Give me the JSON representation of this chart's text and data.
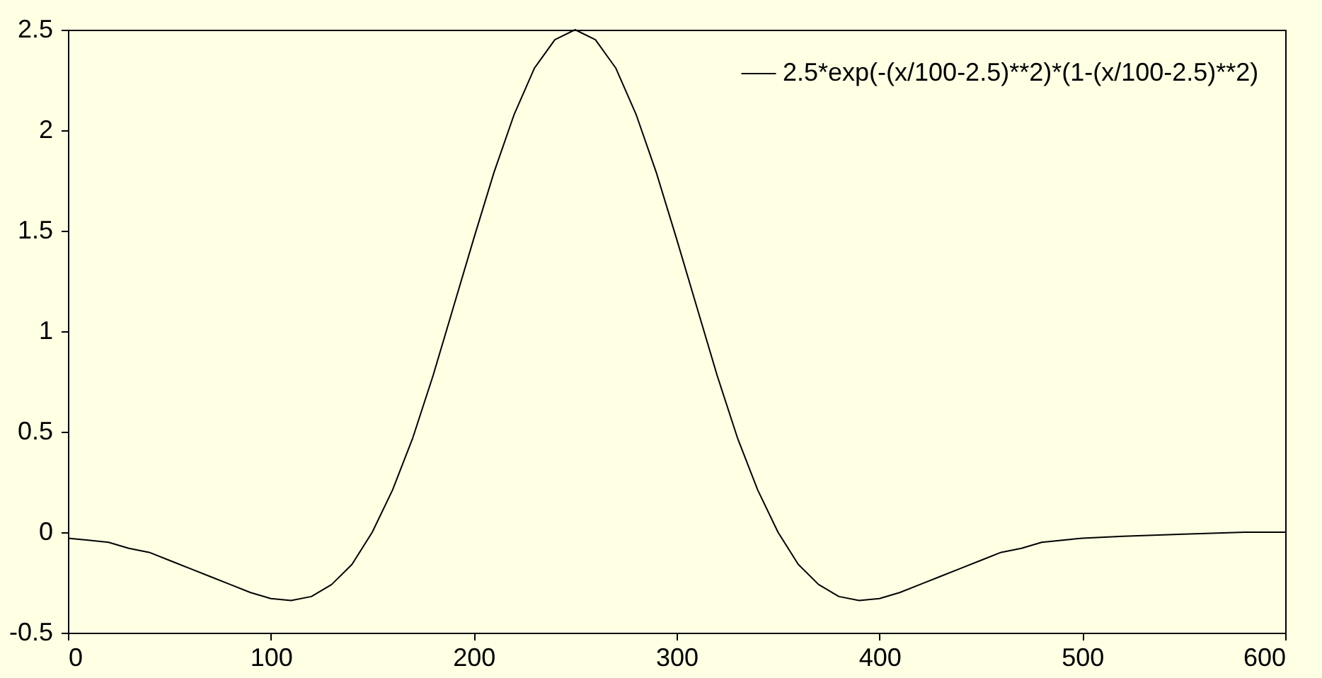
{
  "chart_data": {
    "type": "line",
    "legend": "top right",
    "grid": false,
    "xlim": [
      0,
      600
    ],
    "xticks": [
      0,
      100,
      200,
      300,
      400,
      500,
      600
    ],
    "ylim": [
      -0.5,
      2.5
    ],
    "yticks": [
      -0.5,
      0,
      0.5,
      1,
      1.5,
      2,
      2.5
    ],
    "series": [
      {
        "name": "2.5*exp(-(x/100-2.5)**2)*(1-(x/100-2.5)**2)",
        "color": "#000000",
        "x": [
          0,
          10,
          20,
          30,
          40,
          50,
          60,
          70,
          80,
          90,
          100,
          110,
          120,
          130,
          140,
          150,
          160,
          170,
          180,
          190,
          200,
          210,
          220,
          230,
          240,
          250,
          260,
          270,
          280,
          290,
          300,
          310,
          320,
          330,
          340,
          350,
          360,
          370,
          380,
          390,
          400,
          410,
          420,
          430,
          440,
          450,
          460,
          470,
          480,
          500,
          520,
          550,
          580,
          600
        ],
        "values": [
          -0.03,
          -0.04,
          -0.05,
          -0.08,
          -0.1,
          -0.14,
          -0.18,
          -0.22,
          -0.26,
          -0.3,
          -0.33,
          -0.34,
          -0.32,
          -0.26,
          -0.16,
          0,
          0.21,
          0.47,
          0.78,
          1.12,
          1.46,
          1.79,
          2.08,
          2.31,
          2.45,
          2.5,
          2.45,
          2.31,
          2.08,
          1.79,
          1.46,
          1.12,
          0.78,
          0.47,
          0.21,
          0,
          -0.16,
          -0.26,
          -0.32,
          -0.34,
          -0.33,
          -0.3,
          -0.26,
          -0.22,
          -0.18,
          -0.14,
          -0.1,
          -0.08,
          -0.05,
          -0.03,
          -0.02,
          -0.01,
          0,
          0
        ]
      }
    ]
  }
}
